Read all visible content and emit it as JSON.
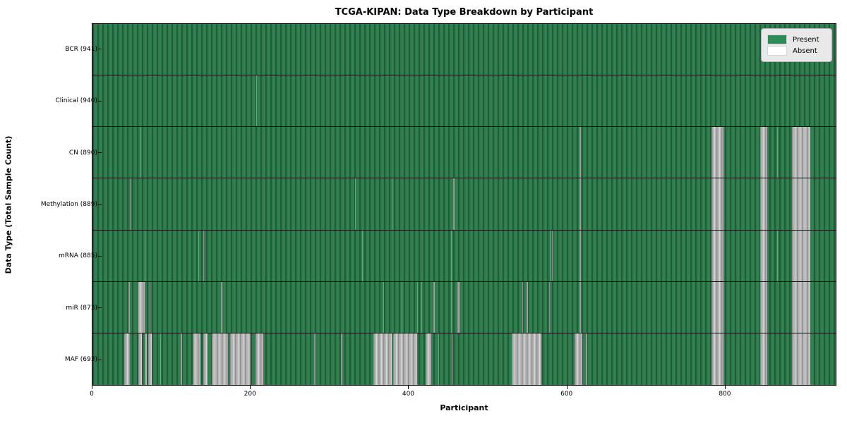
{
  "title": "TCGA-KIPAN: Data Type Breakdown by Participant",
  "legend": {
    "present_label": "Present",
    "absent_label": "Absent",
    "present_color": "#2e8b57",
    "absent_color": "#ffffff"
  },
  "axes": {
    "xlabel": "Participant",
    "ylabel": "Data Type (Total Sample Count)",
    "xticks": [
      0,
      200,
      400,
      600,
      800
    ]
  },
  "chart_data": {
    "type": "heatmap",
    "title": "TCGA-KIPAN: Data Type Breakdown by Participant",
    "xlabel": "Participant",
    "ylabel": "Data Type (Total Sample Count)",
    "x_range": [
      0,
      941
    ],
    "legend_position": "upper right",
    "present_color_hex": "#2e8b57",
    "absent_color_hex": "#ffffff",
    "rows": [
      {
        "label": "BCR (941)",
        "data_type": "BCR",
        "sample_count": 941,
        "absent_participant_ranges": []
      },
      {
        "label": "Clinical (940)",
        "data_type": "Clinical",
        "sample_count": 940,
        "absent_participant_ranges": [
          [
            207,
            208
          ]
        ]
      },
      {
        "label": "CN (890)",
        "data_type": "CN",
        "sample_count": 890,
        "absent_participant_ranges": [
          [
            61,
            62
          ],
          [
            617,
            618
          ],
          [
            784,
            799
          ],
          [
            845,
            854
          ],
          [
            867,
            868
          ],
          [
            886,
            909
          ]
        ]
      },
      {
        "label": "Methylation (889)",
        "data_type": "Methylation",
        "sample_count": 889,
        "absent_participant_ranges": [
          [
            47,
            48
          ],
          [
            332,
            333
          ],
          [
            379,
            380
          ],
          [
            457,
            458
          ],
          [
            617,
            618
          ],
          [
            784,
            799
          ],
          [
            845,
            854
          ],
          [
            886,
            909
          ]
        ]
      },
      {
        "label": "mRNA (885)",
        "data_type": "mRNA",
        "sample_count": 885,
        "absent_participant_ranges": [
          [
            66,
            67
          ],
          [
            134,
            135
          ],
          [
            140,
            141
          ],
          [
            341,
            342
          ],
          [
            454,
            455
          ],
          [
            579,
            580
          ],
          [
            582,
            583
          ],
          [
            617,
            618
          ],
          [
            784,
            799
          ],
          [
            845,
            854
          ],
          [
            867,
            868
          ],
          [
            886,
            909
          ]
        ]
      },
      {
        "label": "miR (873)",
        "data_type": "miR",
        "sample_count": 873,
        "absent_participant_ranges": [
          [
            46,
            47
          ],
          [
            57,
            66
          ],
          [
            72,
            73
          ],
          [
            163,
            164
          ],
          [
            368,
            369
          ],
          [
            391,
            392
          ],
          [
            411,
            412
          ],
          [
            416,
            417
          ],
          [
            432,
            433
          ],
          [
            454,
            455
          ],
          [
            462,
            465
          ],
          [
            544,
            545
          ],
          [
            550,
            551
          ],
          [
            578,
            579
          ],
          [
            617,
            618
          ],
          [
            784,
            799
          ],
          [
            845,
            854
          ],
          [
            886,
            909
          ]
        ]
      },
      {
        "label": "MAF (693)",
        "data_type": "MAF",
        "sample_count": 693,
        "absent_participant_ranges": [
          [
            40,
            47
          ],
          [
            58,
            63
          ],
          [
            66,
            69
          ],
          [
            71,
            75
          ],
          [
            86,
            87
          ],
          [
            112,
            113
          ],
          [
            127,
            137
          ],
          [
            140,
            146
          ],
          [
            151,
            172
          ],
          [
            174,
            200
          ],
          [
            206,
            216
          ],
          [
            281,
            282
          ],
          [
            315,
            316
          ],
          [
            356,
            379
          ],
          [
            381,
            411
          ],
          [
            422,
            429
          ],
          [
            438,
            439
          ],
          [
            455,
            456
          ],
          [
            531,
            568
          ],
          [
            610,
            620
          ],
          [
            625,
            626
          ],
          [
            784,
            799
          ],
          [
            845,
            854
          ],
          [
            886,
            909
          ]
        ]
      }
    ]
  }
}
